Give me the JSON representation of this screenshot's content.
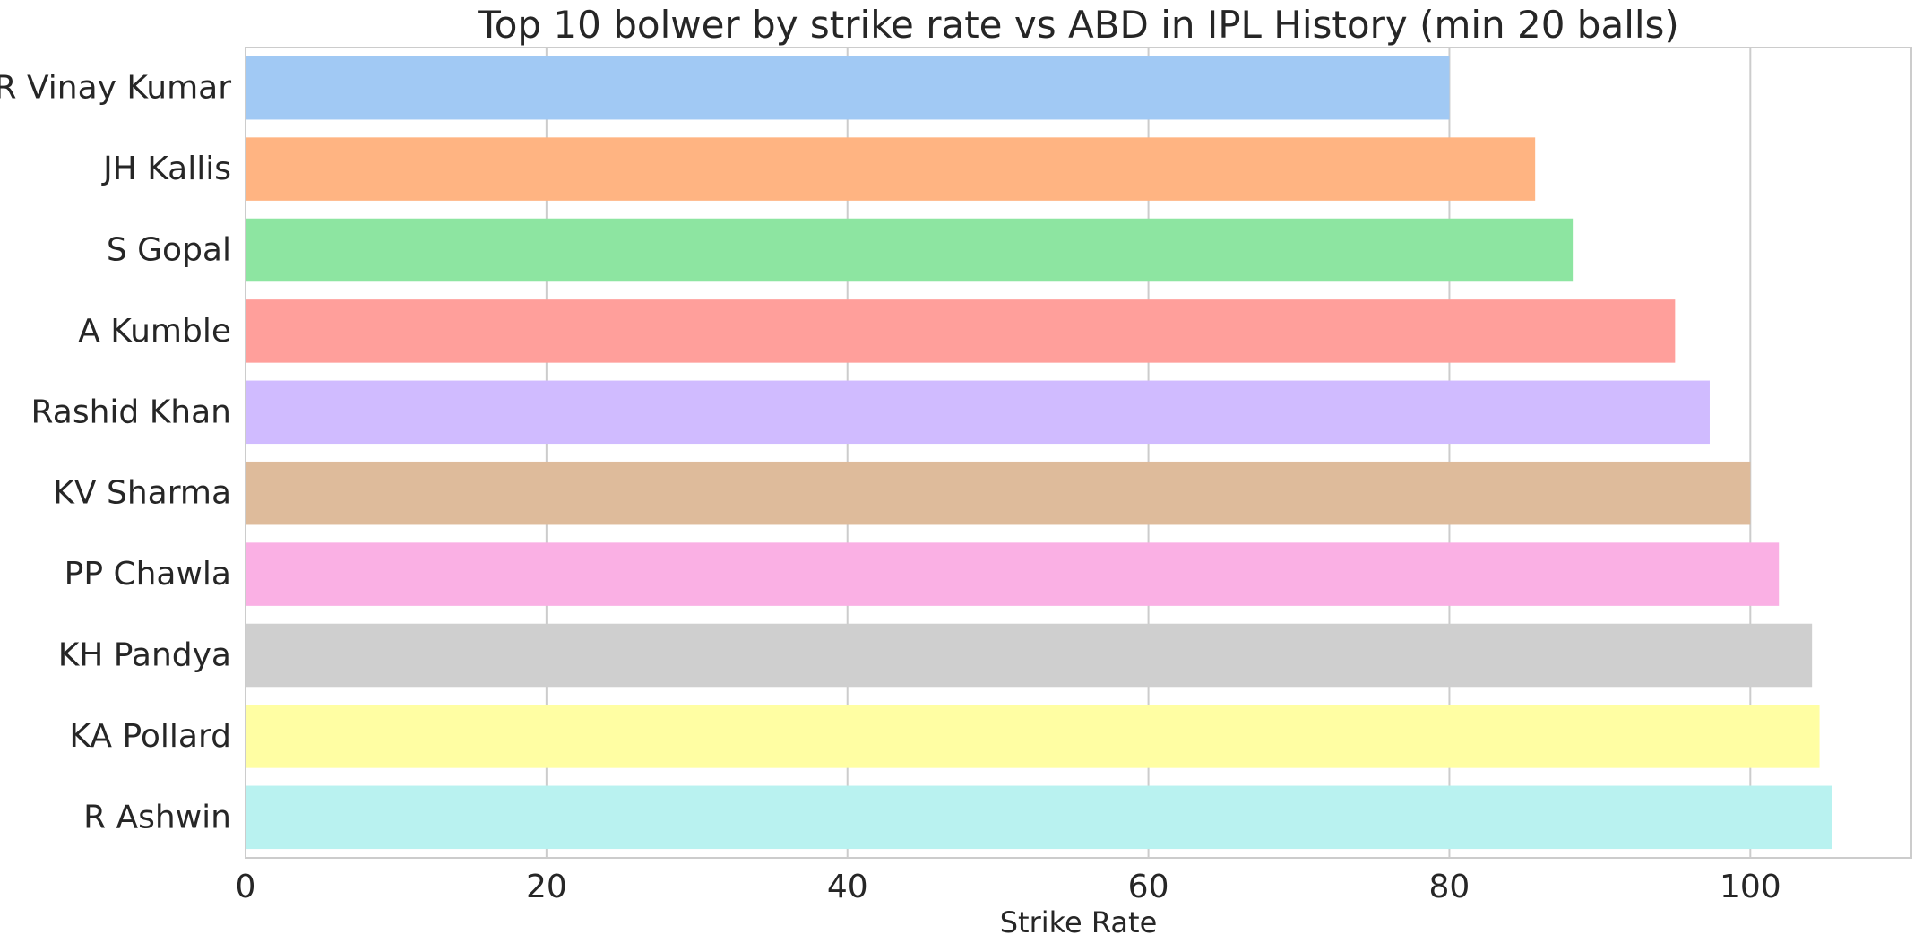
{
  "chart_data": {
    "type": "bar",
    "orientation": "horizontal",
    "title": "Top 10 bolwer by strike rate vs ABD in IPL History (min 20 balls)",
    "xlabel": "Strike Rate",
    "ylabel": "",
    "categories": [
      "R Vinay Kumar",
      "JH Kallis",
      "S Gopal",
      "A Kumble",
      "Rashid Khan",
      "KV Sharma",
      "PP Chawla",
      "KH Pandya",
      "KA Pollard",
      "R Ashwin"
    ],
    "values": [
      80.0,
      85.7,
      88.2,
      95.0,
      97.3,
      100.0,
      101.9,
      104.1,
      104.6,
      105.4
    ],
    "colors": [
      "#a1c9f4",
      "#ffb482",
      "#8de5a1",
      "#ff9f9b",
      "#d0bbff",
      "#debb9b",
      "#fab0e4",
      "#cfcfcf",
      "#fffea3",
      "#b9f2f0"
    ],
    "xlim": [
      0,
      110.7
    ],
    "xticks": [
      0,
      20,
      40,
      60,
      80,
      100
    ],
    "grid": true,
    "grid_color": "#cccccc",
    "spine_color": "#cccccc"
  }
}
